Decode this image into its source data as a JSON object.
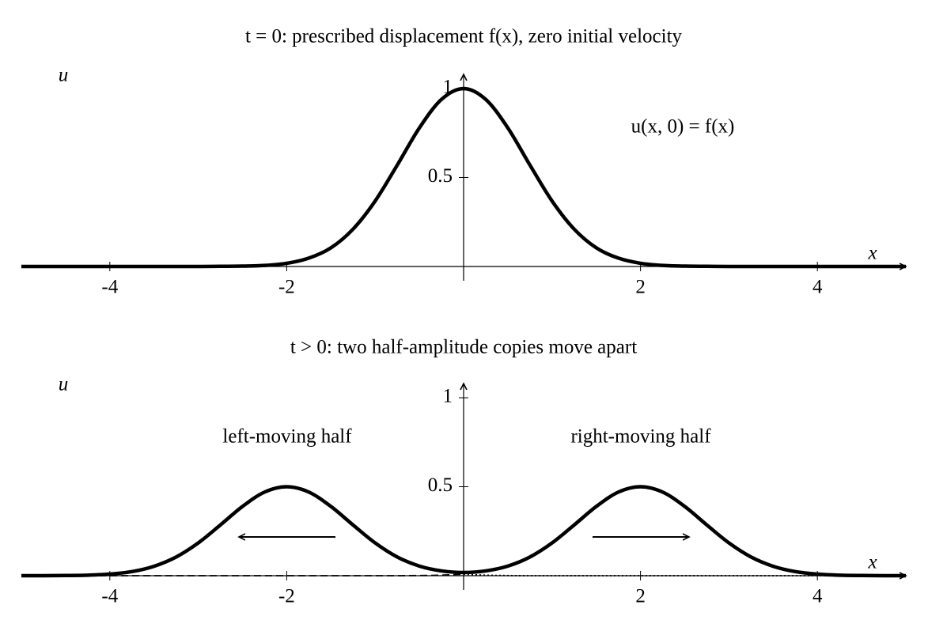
{
  "chart_data": [
    {
      "type": "line",
      "title": "t = 0: prescribed displacement f(x), zero initial velocity",
      "x_label": "x",
      "y_label": "u",
      "annotations": [
        "u(x, 0) = f(x)"
      ],
      "xlim": [
        -5,
        5
      ],
      "ylim": [
        0,
        1.08
      ],
      "xticks": [
        -4,
        -2,
        2,
        4
      ],
      "yticks": [
        0.5,
        1
      ],
      "x": [
        -5,
        -4.75,
        -4.5,
        -4.25,
        -4,
        -3.75,
        -3.5,
        -3.25,
        -3,
        -2.75,
        -2.5,
        -2.25,
        -2,
        -1.75,
        -1.5,
        -1.25,
        -1,
        -0.75,
        -0.5,
        -0.25,
        0,
        0.25,
        0.5,
        0.75,
        1,
        1.25,
        1.5,
        1.75,
        2,
        2.25,
        2.5,
        2.75,
        3,
        3.25,
        3.5,
        3.75,
        4,
        4.25,
        4.5,
        4.75,
        5
      ],
      "series": [
        {
          "color": "#000000",
          "style": "solid",
          "values": [
            0,
            0,
            0,
            0,
            0,
            0,
            0,
            0,
            0,
            0.001,
            0.002,
            0.006,
            0.018,
            0.047,
            0.105,
            0.21,
            0.368,
            0.57,
            0.779,
            0.939,
            1,
            0.939,
            0.779,
            0.57,
            0.368,
            0.21,
            0.105,
            0.047,
            0.018,
            0.006,
            0.002,
            0.001,
            0,
            0,
            0,
            0,
            0,
            0,
            0,
            0,
            0
          ]
        }
      ]
    },
    {
      "type": "line",
      "title": "t > 0: two half-amplitude copies move apart",
      "x_label": "x",
      "y_label": "u",
      "annotations": [
        "left-moving half",
        "right-moving half"
      ],
      "xlim": [
        -5,
        5
      ],
      "ylim": [
        0,
        1.08
      ],
      "xticks": [
        -4,
        -2,
        2,
        4
      ],
      "yticks": [
        0.5,
        1
      ],
      "x": [
        -5,
        -4.75,
        -4.5,
        -4.25,
        -4,
        -3.75,
        -3.5,
        -3.25,
        -3,
        -2.75,
        -2.5,
        -2.25,
        -2,
        -1.75,
        -1.5,
        -1.25,
        -1,
        -0.75,
        -0.5,
        -0.25,
        0,
        0.25,
        0.5,
        0.75,
        1,
        1.25,
        1.5,
        1.75,
        2,
        2.25,
        2.5,
        2.75,
        3,
        3.25,
        3.5,
        3.75,
        4,
        4.25,
        4.5,
        4.75,
        5
      ],
      "series": [
        {
          "color": "#000000",
          "style": "dashed",
          "values": [
            0,
            0,
            0,
            0,
            0,
            0,
            0,
            0,
            0,
            0,
            0,
            0,
            0,
            0,
            0,
            0,
            0,
            0,
            0.001,
            0.003,
            0.009,
            null,
            null,
            null,
            null,
            null,
            null,
            null,
            null,
            null,
            null,
            null,
            null,
            null,
            null,
            null,
            null,
            null,
            null,
            null,
            null
          ]
        },
        {
          "color": "#000000",
          "style": "dotted",
          "values": [
            null,
            null,
            null,
            null,
            null,
            null,
            null,
            null,
            null,
            null,
            null,
            null,
            null,
            null,
            null,
            null,
            null,
            null,
            null,
            null,
            0.009,
            0.003,
            0.001,
            0,
            0,
            0,
            0,
            0,
            0,
            0,
            0,
            0,
            0,
            0,
            0,
            0,
            0,
            0,
            0,
            0,
            0
          ]
        },
        {
          "color": "#000000",
          "style": "solid",
          "values": [
            0,
            0,
            0.001,
            0.003,
            0.009,
            0.023,
            0.053,
            0.105,
            0.184,
            0.285,
            0.389,
            0.47,
            0.5,
            0.47,
            0.389,
            0.285,
            0.184,
            0.105,
            0.054,
            0.027,
            0.018,
            0.027,
            0.054,
            0.105,
            0.184,
            0.285,
            0.389,
            0.47,
            0.5,
            0.47,
            0.389,
            0.285,
            0.184,
            0.105,
            0.053,
            0.023,
            0.009,
            0.003,
            0.001,
            0,
            0
          ]
        }
      ]
    }
  ]
}
